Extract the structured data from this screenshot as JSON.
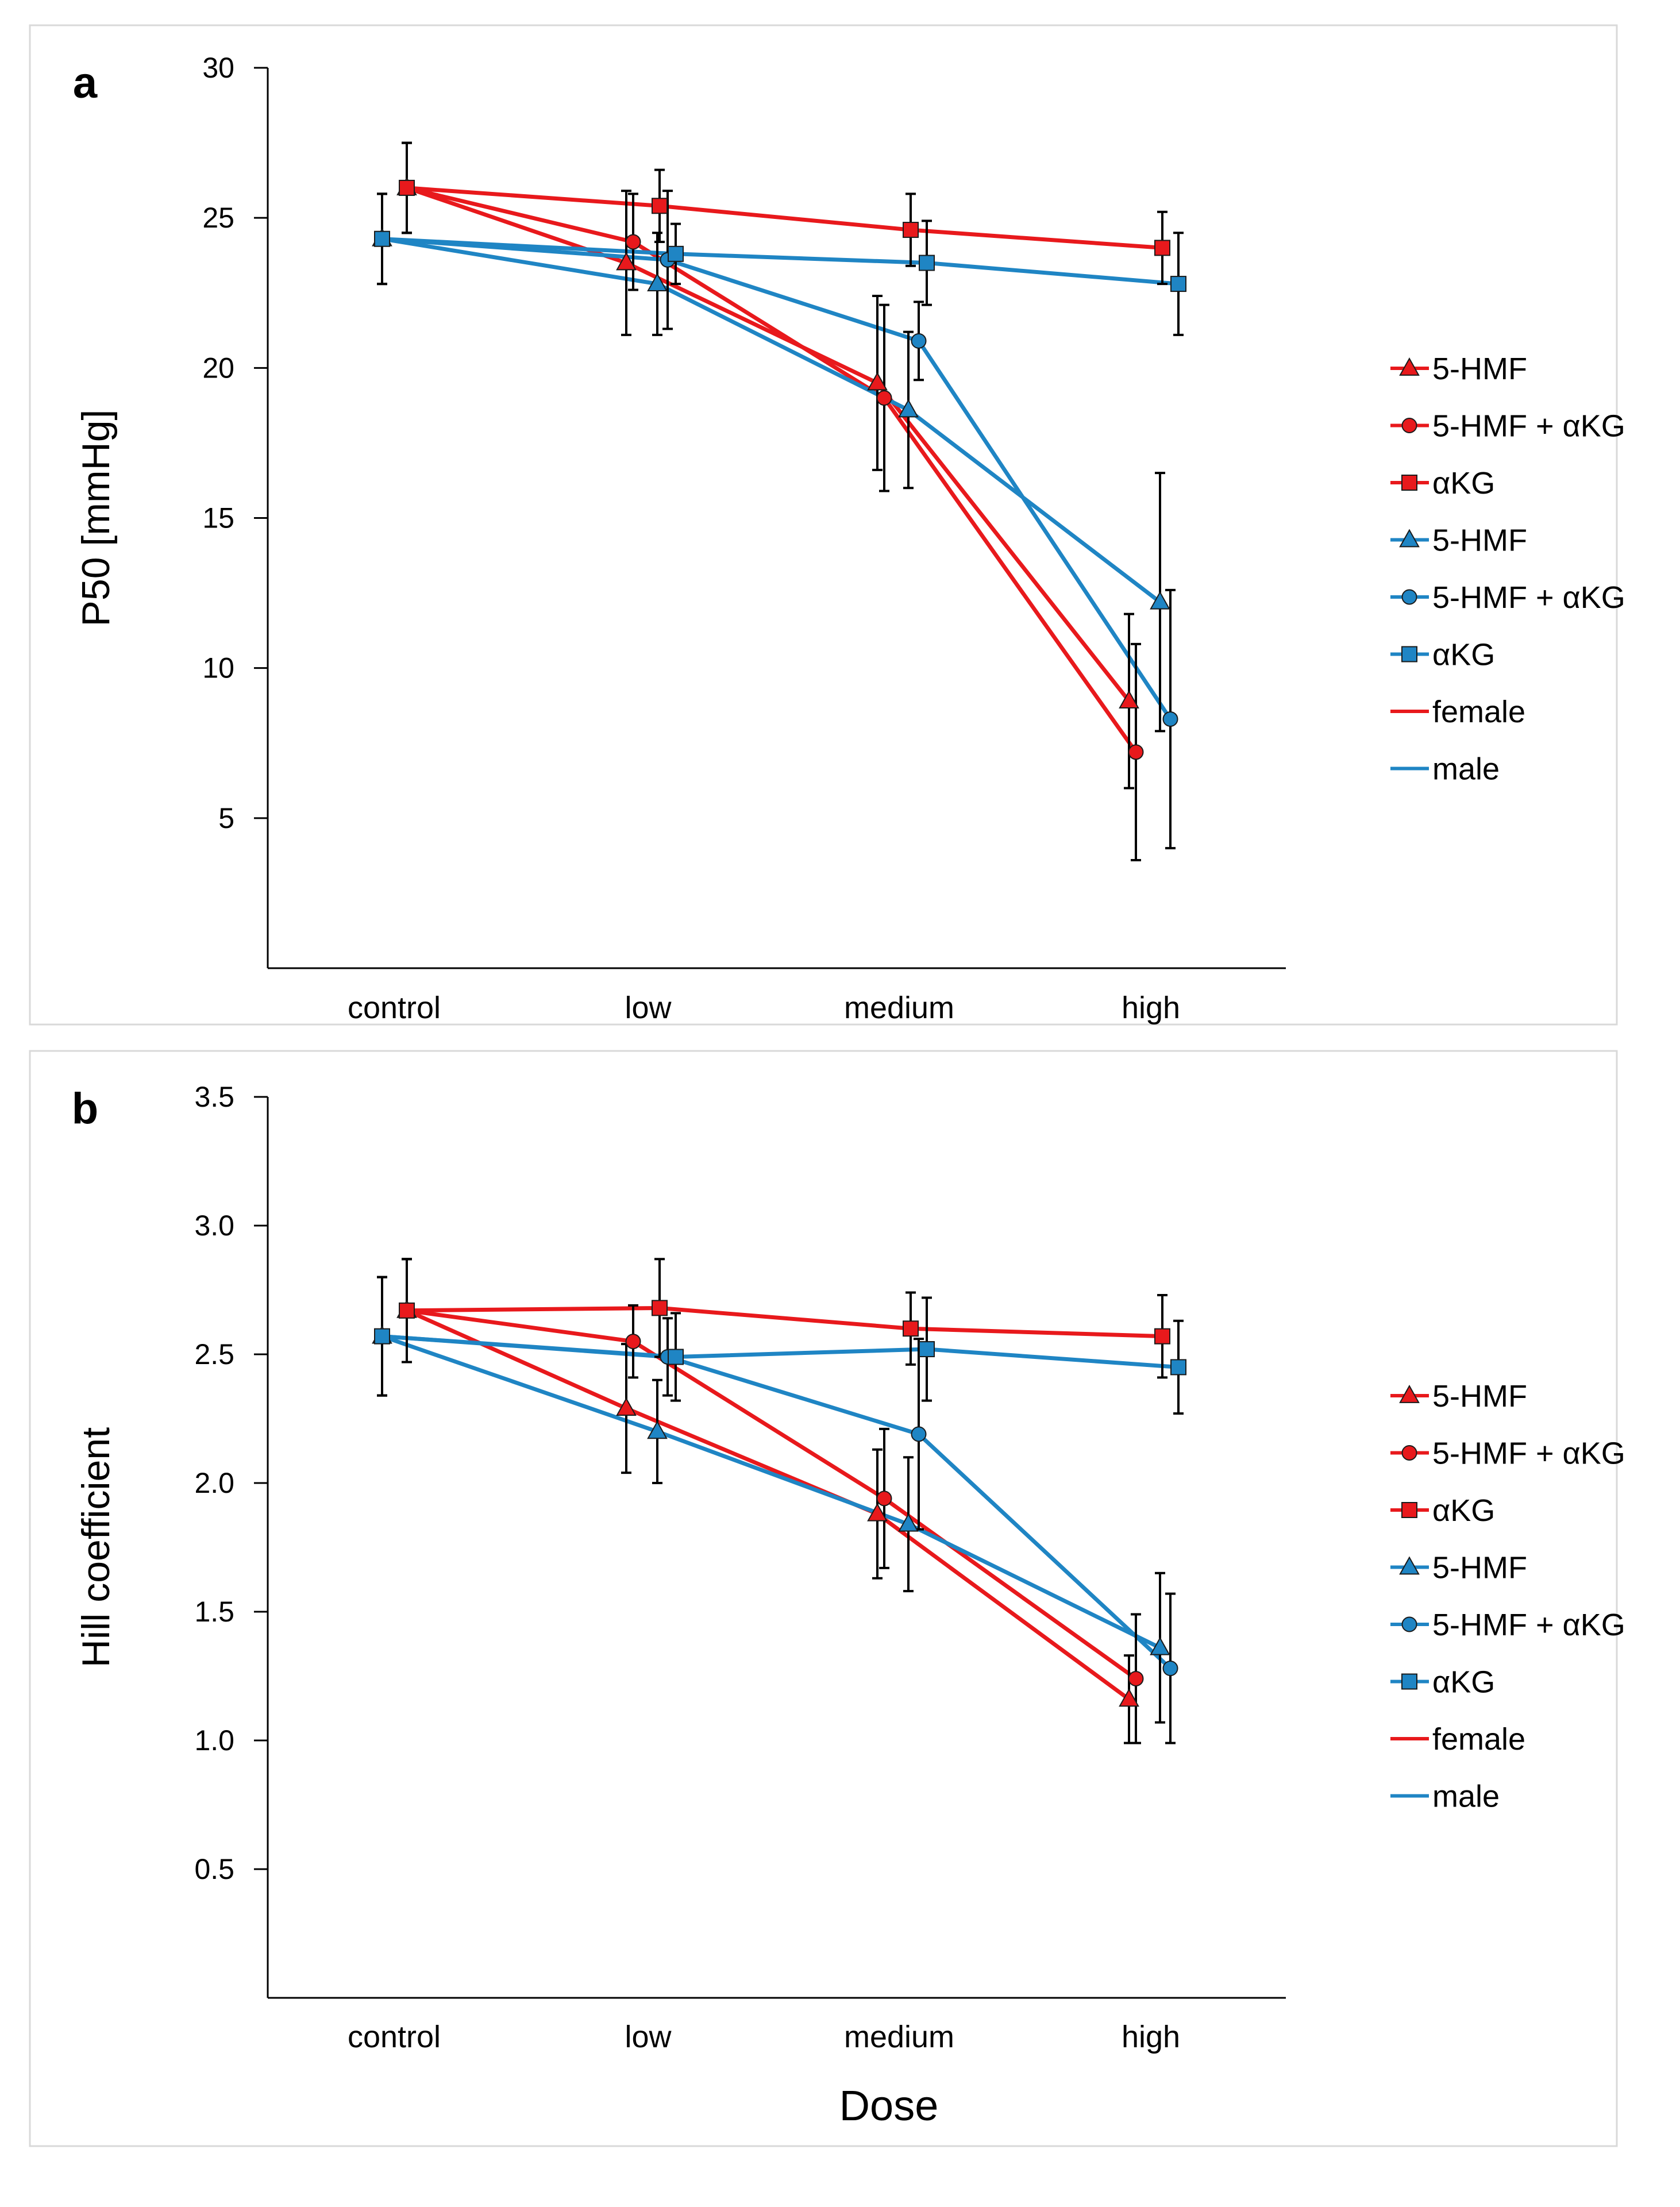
{
  "figure": {
    "colors": {
      "female": "#e8191c",
      "male": "#1f85c4",
      "errorbar": "#000000",
      "axis": "#000000",
      "frame": "#d9d9d9"
    },
    "legend": [
      {
        "label": "5-HMF",
        "color": "#e8191c",
        "marker": "triangle"
      },
      {
        "label": "5-HMF + αKG",
        "color": "#e8191c",
        "marker": "circle"
      },
      {
        "label": "αKG",
        "color": "#e8191c",
        "marker": "square"
      },
      {
        "label": "5-HMF",
        "color": "#1f85c4",
        "marker": "triangle"
      },
      {
        "label": "5-HMF + αKG",
        "color": "#1f85c4",
        "marker": "circle"
      },
      {
        "label": "αKG",
        "color": "#1f85c4",
        "marker": "square"
      },
      {
        "label": "female",
        "color": "#e8191c",
        "marker": "line"
      },
      {
        "label": "male",
        "color": "#1f85c4",
        "marker": "line"
      }
    ]
  },
  "chart_data": [
    {
      "panel": "a",
      "type": "line",
      "title": "",
      "xlabel": "",
      "ylabel": "P50 [mmHg]",
      "categories": [
        "control",
        "low",
        "medium",
        "high"
      ],
      "ylim": [
        0,
        30
      ],
      "yticks": [
        5,
        10,
        15,
        20,
        25,
        30
      ],
      "ytick_labels": [
        "5",
        "10",
        "15",
        "20",
        "25",
        "30"
      ],
      "series": [
        {
          "name": "5-HMF",
          "sex": "female",
          "marker": "triangle",
          "values": [
            26.0,
            23.5,
            19.5,
            8.9
          ],
          "errors": [
            1.5,
            2.4,
            2.9,
            2.9
          ]
        },
        {
          "name": "5-HMF + αKG",
          "sex": "female",
          "marker": "circle",
          "values": [
            26.0,
            24.2,
            19.0,
            7.2
          ],
          "errors": [
            1.5,
            1.6,
            3.1,
            3.6
          ]
        },
        {
          "name": "αKG",
          "sex": "female",
          "marker": "square",
          "values": [
            26.0,
            25.4,
            24.6,
            24.0
          ],
          "errors": [
            1.5,
            1.2,
            1.2,
            1.2
          ]
        },
        {
          "name": "5-HMF",
          "sex": "male",
          "marker": "triangle",
          "values": [
            24.3,
            22.8,
            18.6,
            12.2
          ],
          "errors": [
            1.5,
            1.7,
            2.6,
            4.3
          ]
        },
        {
          "name": "5-HMF + αKG",
          "sex": "male",
          "marker": "circle",
          "values": [
            24.3,
            23.6,
            20.9,
            8.3
          ],
          "errors": [
            1.5,
            2.3,
            1.3,
            4.3
          ]
        },
        {
          "name": "αKG",
          "sex": "male",
          "marker": "square",
          "values": [
            24.3,
            23.8,
            23.5,
            22.8
          ],
          "errors": [
            1.5,
            1.0,
            1.4,
            1.7
          ]
        }
      ]
    },
    {
      "panel": "b",
      "type": "line",
      "title": "",
      "xlabel": "Dose",
      "ylabel": "Hill coefficient",
      "categories": [
        "control",
        "low",
        "medium",
        "high"
      ],
      "ylim": [
        0,
        3.5
      ],
      "yticks": [
        0.5,
        1.0,
        1.5,
        2.0,
        2.5,
        3.0,
        3.5
      ],
      "ytick_labels": [
        "0.5",
        "1.0",
        "1.5",
        "2.0",
        "2.5",
        "3.0",
        "3.5"
      ],
      "series": [
        {
          "name": "5-HMF",
          "sex": "female",
          "marker": "triangle",
          "values": [
            2.67,
            2.29,
            1.88,
            1.16
          ],
          "errors": [
            0.2,
            0.25,
            0.25,
            0.17
          ]
        },
        {
          "name": "5-HMF + αKG",
          "sex": "female",
          "marker": "circle",
          "values": [
            2.67,
            2.55,
            1.94,
            1.24
          ],
          "errors": [
            0.2,
            0.14,
            0.27,
            0.25
          ]
        },
        {
          "name": "αKG",
          "sex": "female",
          "marker": "square",
          "values": [
            2.67,
            2.68,
            2.6,
            2.57
          ],
          "errors": [
            0.2,
            0.19,
            0.14,
            0.16
          ]
        },
        {
          "name": "5-HMF",
          "sex": "male",
          "marker": "triangle",
          "values": [
            2.57,
            2.2,
            1.84,
            1.36
          ],
          "errors": [
            0.23,
            0.2,
            0.26,
            0.29
          ]
        },
        {
          "name": "5-HMF + αKG",
          "sex": "male",
          "marker": "circle",
          "values": [
            2.57,
            2.49,
            2.19,
            1.28
          ],
          "errors": [
            0.23,
            0.15,
            0.37,
            0.29
          ]
        },
        {
          "name": "αKG",
          "sex": "male",
          "marker": "square",
          "values": [
            2.57,
            2.49,
            2.52,
            2.45
          ],
          "errors": [
            0.23,
            0.17,
            0.2,
            0.18
          ]
        }
      ]
    }
  ]
}
